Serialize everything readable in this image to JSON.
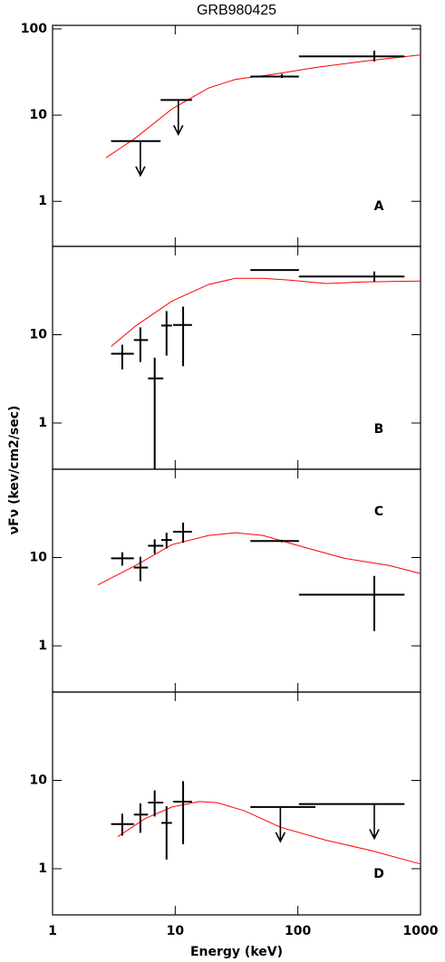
{
  "chart_data": [
    {
      "type": "errorbar",
      "title": "GRB980425",
      "panel_label": "A",
      "xlog": true,
      "ylog": true,
      "xlim": [
        1,
        1000
      ],
      "ylim": [
        0.3,
        110
      ],
      "xticks": [
        1,
        10,
        100,
        1000
      ],
      "yticks": [
        1,
        10,
        100
      ],
      "points": {
        "color": "#000000",
        "x": [
          5.2,
          10.6,
          74,
          420
        ],
        "y": [
          5.0,
          15,
          28,
          48
        ],
        "x_low": [
          3.0,
          7.6,
          41,
          102
        ],
        "x_high": [
          7.6,
          13.7,
          102,
          740
        ],
        "y_low": [
          null,
          null,
          27,
          42
        ],
        "y_high": [
          null,
          null,
          30,
          56
        ],
        "upper_limit": [
          true,
          true,
          false,
          false
        ]
      },
      "model": {
        "color": "#ff0000",
        "x": [
          2.73,
          4.8,
          9.4,
          18.7,
          31,
          61,
          144,
          338,
          1000
        ],
        "y": [
          3.2,
          5.5,
          11.8,
          20.6,
          26,
          29.5,
          36,
          42,
          50
        ]
      }
    },
    {
      "type": "errorbar",
      "panel_label": "B",
      "ylabel": "νFν (kev/cm2/sec)",
      "xlog": true,
      "ylog": true,
      "xlim": [
        1,
        1000
      ],
      "ylim": [
        0.3,
        100
      ],
      "xticks": [
        1,
        10,
        100,
        1000
      ],
      "yticks": [
        1,
        10
      ],
      "points": {
        "color": "#000000",
        "x": [
          3.7,
          5.2,
          6.8,
          8.5,
          11.6,
          72,
          420
        ],
        "y": [
          6.1,
          8.7,
          3.2,
          12.7,
          12.9,
          54,
          45.6
        ],
        "x_low": [
          3.0,
          4.6,
          6.0,
          7.7,
          9.6,
          41,
          102
        ],
        "x_high": [
          4.6,
          6.0,
          8.0,
          9.4,
          13.7,
          102,
          740
        ],
        "y_low": [
          4.05,
          4.9,
          0.3,
          5.8,
          4.4,
          53,
          40
        ],
        "y_high": [
          7.7,
          12.1,
          5.5,
          18.5,
          20.8,
          55,
          52
        ],
        "upper_limit": [
          false,
          false,
          false,
          false,
          false,
          false,
          false
        ]
      },
      "model": {
        "color": "#ff0000",
        "x": [
          3.0,
          4.8,
          9.4,
          18.7,
          31,
          52,
          86,
          170,
          338,
          1000
        ],
        "y": [
          7.35,
          12.7,
          24,
          37,
          43.6,
          43.6,
          41.5,
          38,
          39.5,
          40.5
        ]
      }
    },
    {
      "type": "errorbar",
      "panel_label": "C",
      "xlog": true,
      "ylog": true,
      "xlim": [
        1,
        1000
      ],
      "ylim": [
        0.3,
        100
      ],
      "xticks": [
        1,
        10,
        100,
        1000
      ],
      "yticks": [
        1,
        10
      ],
      "points": {
        "color": "#000000",
        "x": [
          3.7,
          5.2,
          6.8,
          8.5,
          11.6,
          74,
          420
        ],
        "y": [
          9.8,
          7.7,
          13.6,
          15.8,
          19.6,
          15.4,
          3.8
        ],
        "x_low": [
          3.0,
          4.6,
          6.0,
          7.7,
          9.6,
          41,
          102
        ],
        "x_high": [
          4.6,
          6.0,
          8.0,
          9.4,
          13.7,
          102,
          740
        ],
        "y_low": [
          8.1,
          5.4,
          11.0,
          12.7,
          14.7,
          14.9,
          1.47
        ],
        "y_high": [
          11.5,
          10.2,
          16.1,
          19.1,
          24.9,
          15.9,
          6.2
        ],
        "upper_limit": [
          false,
          false,
          false,
          false,
          false,
          false,
          false
        ]
      },
      "model": {
        "color": "#ff0000",
        "x": [
          2.34,
          4.8,
          9.4,
          18.7,
          31,
          52,
          102,
          240,
          560,
          1000
        ],
        "y": [
          4.9,
          8.2,
          14,
          17.8,
          19.1,
          17.8,
          13.6,
          9.8,
          8.1,
          6.6
        ]
      }
    },
    {
      "type": "errorbar",
      "panel_label": "D",
      "xlabel": "Energy (keV)",
      "xlog": true,
      "ylog": true,
      "xlim": [
        1,
        1000
      ],
      "ylim": [
        0.3,
        100
      ],
      "xticks": [
        1,
        10,
        100,
        1000
      ],
      "yticks": [
        1,
        10
      ],
      "points": {
        "color": "#000000",
        "x": [
          3.7,
          5.2,
          6.8,
          8.5,
          11.6,
          72,
          420
        ],
        "y": [
          3.2,
          4.1,
          5.6,
          3.3,
          5.75,
          5.0,
          5.4
        ],
        "x_low": [
          3.0,
          4.6,
          6.0,
          7.7,
          9.6,
          41,
          102
        ],
        "x_high": [
          4.6,
          6.0,
          8.0,
          9.4,
          13.7,
          139,
          740
        ],
        "y_low": [
          2.37,
          2.55,
          3.9,
          1.27,
          1.9,
          null,
          null
        ],
        "y_high": [
          4.2,
          5.5,
          7.7,
          5.1,
          9.8,
          null,
          null
        ],
        "upper_limit": [
          false,
          false,
          false,
          false,
          false,
          true,
          true
        ]
      },
      "model": {
        "color": "#ff0000",
        "x": [
          3.4,
          5.7,
          9.4,
          15.7,
          22,
          37,
          72,
          170,
          400,
          1000
        ],
        "y": [
          2.3,
          3.7,
          5.0,
          5.75,
          5.6,
          4.5,
          2.95,
          2.1,
          1.6,
          1.13
        ]
      }
    }
  ]
}
